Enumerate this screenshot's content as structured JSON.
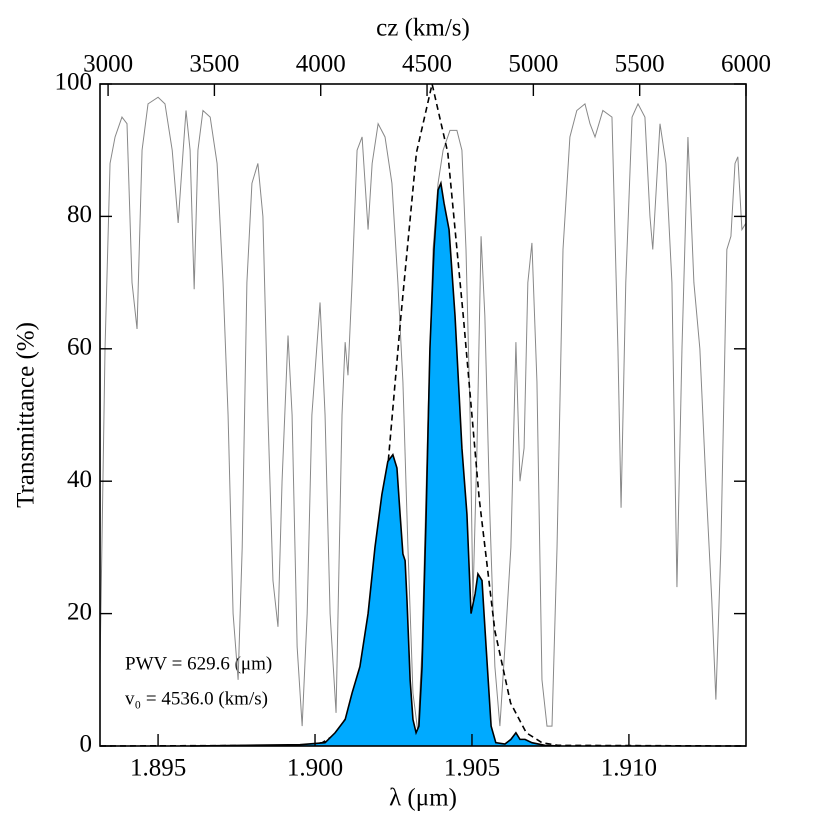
{
  "chart_data": {
    "type": "line",
    "xlabel": "λ (μm)",
    "ylabel": "Transmittance (%)",
    "x2label": "cz (km/s)",
    "annotations": [
      "PWV  =  629.6 (μm)",
      "v₀  =  4536.0 (km/s)"
    ],
    "xlim": [
      1.89315,
      1.91373
    ],
    "xticks": [
      1.895,
      {
        "value": 1.9,
        "label": "1.900"
      },
      1.905,
      {
        "value": 1.91,
        "label": "1.910"
      }
    ],
    "x2lim": [
      2962,
      6000
    ],
    "x2ticks": [
      3000,
      3500,
      4000,
      4500,
      5000,
      5500,
      6000
    ],
    "ylim": [
      0,
      100
    ],
    "yticks": [
      0,
      20,
      40,
      60,
      80,
      100
    ],
    "grid": false,
    "series": [
      {
        "color": "#888888",
        "style": "solid",
        "x": [
          1.89315,
          1.89331,
          1.89347,
          1.89363,
          1.89385,
          1.89401,
          1.89417,
          1.89433,
          1.89449,
          1.89468,
          1.895,
          1.89522,
          1.89545,
          1.89564,
          1.8958,
          1.89589,
          1.89602,
          1.89615,
          1.89627,
          1.89643,
          1.89666,
          1.89688,
          1.89707,
          1.89723,
          1.89739,
          1.89755,
          1.89768,
          1.89783,
          1.89799,
          1.89818,
          1.89834,
          1.8985,
          1.89866,
          1.89882,
          1.89895,
          1.89914,
          1.89927,
          1.89943,
          1.89959,
          1.89975,
          1.8999,
          1.90016,
          1.90032,
          1.90048,
          1.90067,
          1.90086,
          1.90096,
          1.90105,
          1.90118,
          1.90134,
          1.9015,
          1.90169,
          1.90182,
          1.90201,
          1.90223,
          1.90245,
          1.90264,
          1.9028,
          1.90296,
          1.90312,
          1.90328,
          1.90341,
          1.9036,
          1.90376,
          1.90392,
          1.90408,
          1.9043,
          1.90452,
          1.90468,
          1.90481,
          1.90494,
          1.90503,
          1.90516,
          1.90529,
          1.90541,
          1.90557,
          1.90573,
          1.90589,
          1.90605,
          1.90624,
          1.9064,
          1.90653,
          1.90666,
          1.90678,
          1.90691,
          1.90707,
          1.90723,
          1.90739,
          1.90755,
          1.90771,
          1.9079,
          1.90812,
          1.90834,
          1.9086,
          1.90876,
          1.90892,
          1.90917,
          1.90946,
          1.90965,
          1.90975,
          1.9099,
          1.9101,
          1.91029,
          1.91051,
          1.91067,
          1.91076,
          1.91099,
          1.91118,
          1.91137,
          1.91153,
          1.91169,
          1.91188,
          1.91207,
          1.91226,
          1.91245,
          1.91264,
          1.91277,
          1.91293,
          1.91312,
          1.91325,
          1.91338,
          1.91347,
          1.9136,
          1.91373
        ],
        "values": [
          12,
          60,
          88,
          92,
          95,
          94,
          70,
          63,
          90,
          97,
          98,
          97,
          90,
          79,
          90,
          96,
          90,
          69,
          90,
          96,
          95,
          88,
          70,
          50,
          20,
          10,
          30,
          70,
          85,
          88,
          80,
          50,
          25,
          18,
          40,
          62,
          50,
          15,
          3,
          20,
          50,
          67,
          50,
          20,
          5,
          50,
          61,
          56,
          70,
          90,
          92,
          78,
          88,
          94,
          92,
          85,
          70,
          55,
          30,
          8,
          2,
          15,
          50,
          75,
          85,
          90,
          93,
          93,
          90,
          75,
          50,
          22,
          45,
          77,
          65,
          35,
          12,
          3,
          15,
          30,
          61,
          40,
          45,
          70,
          76,
          55,
          10,
          3,
          3,
          30,
          75,
          92,
          96,
          97,
          94,
          92,
          96,
          95,
          60,
          36,
          70,
          95,
          97,
          95,
          80,
          75,
          94,
          88,
          70,
          24,
          60,
          92,
          70,
          60,
          40,
          22,
          7,
          30,
          75,
          77,
          88,
          89,
          78,
          79
        ]
      },
      {
        "color": "#000000",
        "style": "dashed",
        "x": [
          1.89315,
          1.89973,
          1.90023,
          1.90073,
          1.90123,
          1.90173,
          1.90223,
          1.90273,
          1.90323,
          1.90373,
          1.90423,
          1.90473,
          1.90523,
          1.90573,
          1.90623,
          1.90673,
          1.90723,
          1.90773,
          1.91373
        ],
        "values": [
          0,
          0.1,
          0.5,
          2,
          6.5,
          17.4,
          37.4,
          64.6,
          89.6,
          100,
          89.6,
          64.6,
          37.4,
          17.4,
          6.5,
          2,
          0.5,
          0.1,
          0
        ]
      },
      {
        "color": "#000000",
        "fill": "#00aaff",
        "style": "solid",
        "x": [
          1.89602,
          1.89952,
          1.90032,
          1.90064,
          1.90096,
          1.90118,
          1.90143,
          1.90169,
          1.90191,
          1.90213,
          1.90232,
          1.90248,
          1.90261,
          1.90271,
          1.9028,
          1.90287,
          1.90293,
          1.90303,
          1.90312,
          1.90322,
          1.90331,
          1.90341,
          1.90354,
          1.90366,
          1.90379,
          1.90392,
          1.90401,
          1.90411,
          1.90427,
          1.90446,
          1.90468,
          1.90484,
          1.90497,
          1.9051,
          1.90519,
          1.90532,
          1.90545,
          1.90561,
          1.90576,
          1.90605,
          1.90624,
          1.9064,
          1.90653,
          1.90669,
          1.90691,
          1.90732,
          1.9078
        ],
        "values": [
          0,
          0.2,
          0.5,
          2,
          4,
          8,
          12,
          20,
          30,
          38,
          43,
          44,
          42,
          35,
          29,
          28,
          22,
          10,
          4,
          2,
          3,
          12,
          35,
          60,
          75,
          84,
          85,
          82,
          78,
          65,
          45,
          35,
          20,
          23,
          26,
          25,
          15,
          3,
          0.5,
          0.3,
          1,
          2,
          1,
          1,
          0.5,
          0.1,
          0
        ]
      }
    ]
  }
}
